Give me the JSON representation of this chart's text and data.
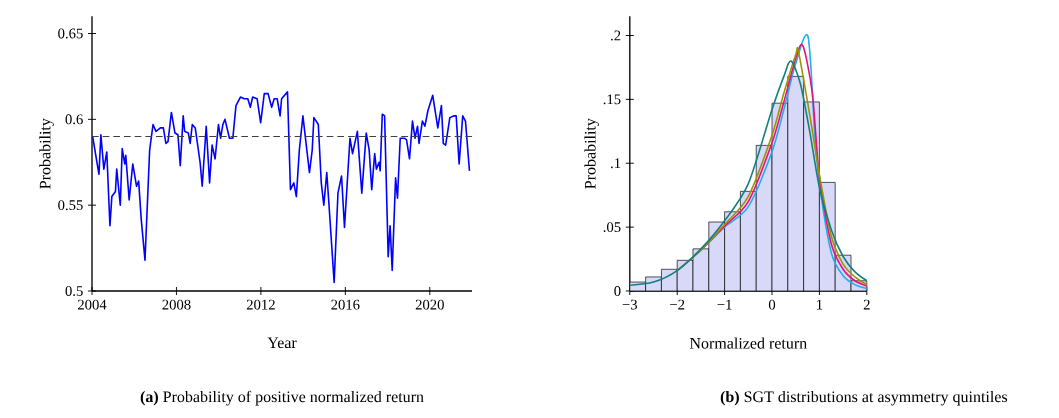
{
  "chart_data": [
    {
      "type": "line",
      "xlabel": "Year",
      "ylabel": "Probability",
      "annotations": [
        "**(a)** Probability of positive normalized return"
      ],
      "color": "#0000ff",
      "grid": false,
      "marker": "none",
      "line_style": "solid",
      "x": [
        2004.03,
        2004.33,
        2004.42,
        2004.56,
        2004.7,
        2004.85,
        2004.94,
        2005.11,
        2005.17,
        2005.34,
        2005.43,
        2005.55,
        2005.6,
        2005.76,
        2005.93,
        2006.11,
        2006.21,
        2006.33,
        2006.51,
        2006.73,
        2006.89,
        2007.03,
        2007.24,
        2007.38,
        2007.5,
        2007.6,
        2007.76,
        2007.93,
        2008.07,
        2008.18,
        2008.32,
        2008.39,
        2008.56,
        2008.65,
        2008.75,
        2008.89,
        2009.12,
        2009.22,
        2009.41,
        2009.57,
        2009.69,
        2009.83,
        2009.99,
        2010.09,
        2010.2,
        2010.3,
        2010.51,
        2010.67,
        2010.82,
        2011.03,
        2011.21,
        2011.38,
        2011.5,
        2011.61,
        2011.82,
        2011.99,
        2012.16,
        2012.34,
        2012.51,
        2012.63,
        2012.77,
        2012.91,
        2012.98,
        2013.26,
        2013.4,
        2013.56,
        2013.68,
        2013.82,
        2013.99,
        2014.3,
        2014.43,
        2014.51,
        2014.72,
        2014.86,
        2014.98,
        2015.12,
        2015.21,
        2015.47,
        2015.65,
        2015.82,
        2015.96,
        2016.22,
        2016.34,
        2016.57,
        2016.78,
        2016.99,
        2017.13,
        2017.25,
        2017.39,
        2017.47,
        2017.6,
        2017.65,
        2017.75,
        2017.86,
        2018.03,
        2018.12,
        2018.22,
        2018.38,
        2018.47,
        2018.6,
        2018.8,
        2018.9,
        2019.04,
        2019.18,
        2019.3,
        2019.42,
        2019.49,
        2019.65,
        2019.77,
        2019.91,
        2020.14,
        2020.38,
        2020.55,
        2020.64,
        2020.75,
        2020.95,
        2021.13,
        2021.25,
        2021.39,
        2021.56,
        2021.69,
        2021.88
      ],
      "values": [
        0.59,
        0.568,
        0.591,
        0.571,
        0.581,
        0.538,
        0.555,
        0.558,
        0.571,
        0.55,
        0.583,
        0.574,
        0.579,
        0.553,
        0.574,
        0.561,
        0.564,
        0.542,
        0.518,
        0.582,
        0.597,
        0.593,
        0.595,
        0.595,
        0.586,
        0.587,
        0.604,
        0.592,
        0.591,
        0.573,
        0.602,
        0.593,
        0.592,
        0.586,
        0.597,
        0.595,
        0.575,
        0.561,
        0.596,
        0.563,
        0.585,
        0.577,
        0.597,
        0.589,
        0.597,
        0.6,
        0.589,
        0.589,
        0.608,
        0.613,
        0.612,
        0.612,
        0.607,
        0.613,
        0.612,
        0.598,
        0.615,
        0.615,
        0.607,
        0.612,
        0.612,
        0.602,
        0.612,
        0.616,
        0.559,
        0.563,
        0.555,
        0.582,
        0.602,
        0.569,
        0.582,
        0.601,
        0.597,
        0.563,
        0.55,
        0.569,
        0.553,
        0.505,
        0.557,
        0.567,
        0.537,
        0.589,
        0.58,
        0.593,
        0.557,
        0.592,
        0.582,
        0.559,
        0.58,
        0.571,
        0.575,
        0.57,
        0.603,
        0.602,
        0.52,
        0.538,
        0.512,
        0.566,
        0.554,
        0.589,
        0.589,
        0.588,
        0.577,
        0.599,
        0.589,
        0.596,
        0.586,
        0.599,
        0.596,
        0.605,
        0.614,
        0.595,
        0.608,
        0.586,
        0.585,
        0.601,
        0.602,
        0.602,
        0.574,
        0.602,
        0.599,
        0.57
      ],
      "xlim": [
        2004,
        2022
      ],
      "ylim": [
        0.5,
        0.66
      ],
      "xticks": [
        2004,
        2008,
        2012,
        2016,
        2020
      ],
      "yticks": [
        0.5,
        0.55,
        0.6,
        0.65
      ],
      "ref_lines": [
        {
          "axis": "y",
          "value": 0.59,
          "color": "#404040",
          "line_style": "dashed"
        }
      ]
    },
    {
      "type": "histogram",
      "xlabel": "Normalized return",
      "ylabel": "Probability",
      "annotations": [
        "**(b)** SGT distributions at asymmetry quintiles"
      ],
      "color": "#d8d8f8",
      "grid": false,
      "bins": [
        -3,
        -2.667,
        -2.333,
        -2,
        -1.667,
        -1.333,
        -1,
        -0.667,
        -0.333,
        0,
        0.333,
        0.667,
        1,
        1.333,
        1.667,
        2
      ],
      "values": [
        0.007,
        0.011,
        0.017,
        0.024,
        0.033,
        0.054,
        0.062,
        0.078,
        0.114,
        0.147,
        0.168,
        0.148,
        0.085,
        0.028,
        0.008
      ],
      "series": [
        {
          "type": "line",
          "color": "#1fb0e8",
          "x": [
            -2,
            -1.5,
            -1,
            -0.5,
            0,
            0.25,
            0.5,
            0.76,
            0.9,
            1,
            1.25,
            1.5,
            1.75,
            2
          ],
          "values": [
            0.016,
            0.032,
            0.05,
            0.066,
            0.109,
            0.142,
            0.178,
            0.199,
            0.124,
            0.084,
            0.03,
            0.012,
            0.005,
            0.002
          ]
        },
        {
          "type": "line",
          "color": "#e8117f",
          "x": [
            -1.5,
            -1,
            -0.5,
            0,
            0.25,
            0.5,
            0.65,
            0.85,
            1,
            1.25,
            1.5,
            1.75,
            2
          ],
          "values": [
            0.032,
            0.051,
            0.07,
            0.116,
            0.148,
            0.182,
            0.192,
            0.155,
            0.089,
            0.037,
            0.017,
            0.008,
            0.004
          ]
        },
        {
          "type": "line",
          "color": "#9c9400",
          "x": [
            -2,
            -1.5,
            -1,
            -0.5,
            0,
            0.25,
            0.5,
            0.56,
            0.8,
            1,
            1.25,
            1.5,
            1.75,
            2
          ],
          "values": [
            0.016,
            0.032,
            0.052,
            0.074,
            0.122,
            0.155,
            0.185,
            0.187,
            0.137,
            0.091,
            0.043,
            0.021,
            0.011,
            0.005
          ]
        },
        {
          "type": "line",
          "color": "#138080",
          "x": [
            -3,
            -2.5,
            -2,
            -1.5,
            -1,
            -0.5,
            0,
            0.25,
            0.4,
            0.6,
            0.8,
            1,
            1.25,
            1.5,
            1.75,
            2
          ],
          "values": [
            0.0045,
            0.007,
            0.016,
            0.033,
            0.055,
            0.084,
            0.142,
            0.168,
            0.18,
            0.162,
            0.124,
            0.081,
            0.048,
            0.027,
            0.015,
            0.008
          ]
        }
      ],
      "xlim": [
        -3,
        2
      ],
      "ylim": [
        0,
        0.215
      ],
      "xticks": [
        {
          "value": -3,
          "label": "−3"
        },
        {
          "value": -2,
          "label": "−2"
        },
        {
          "value": -1,
          "label": "−1"
        },
        0,
        1,
        2
      ],
      "yticks": [
        0,
        {
          "value": 0.05,
          "label": ".05"
        },
        {
          "value": 0.1,
          "label": ".1"
        },
        {
          "value": 0.15,
          "label": ".15"
        },
        {
          "value": 0.2,
          "label": ".2"
        }
      ]
    }
  ]
}
